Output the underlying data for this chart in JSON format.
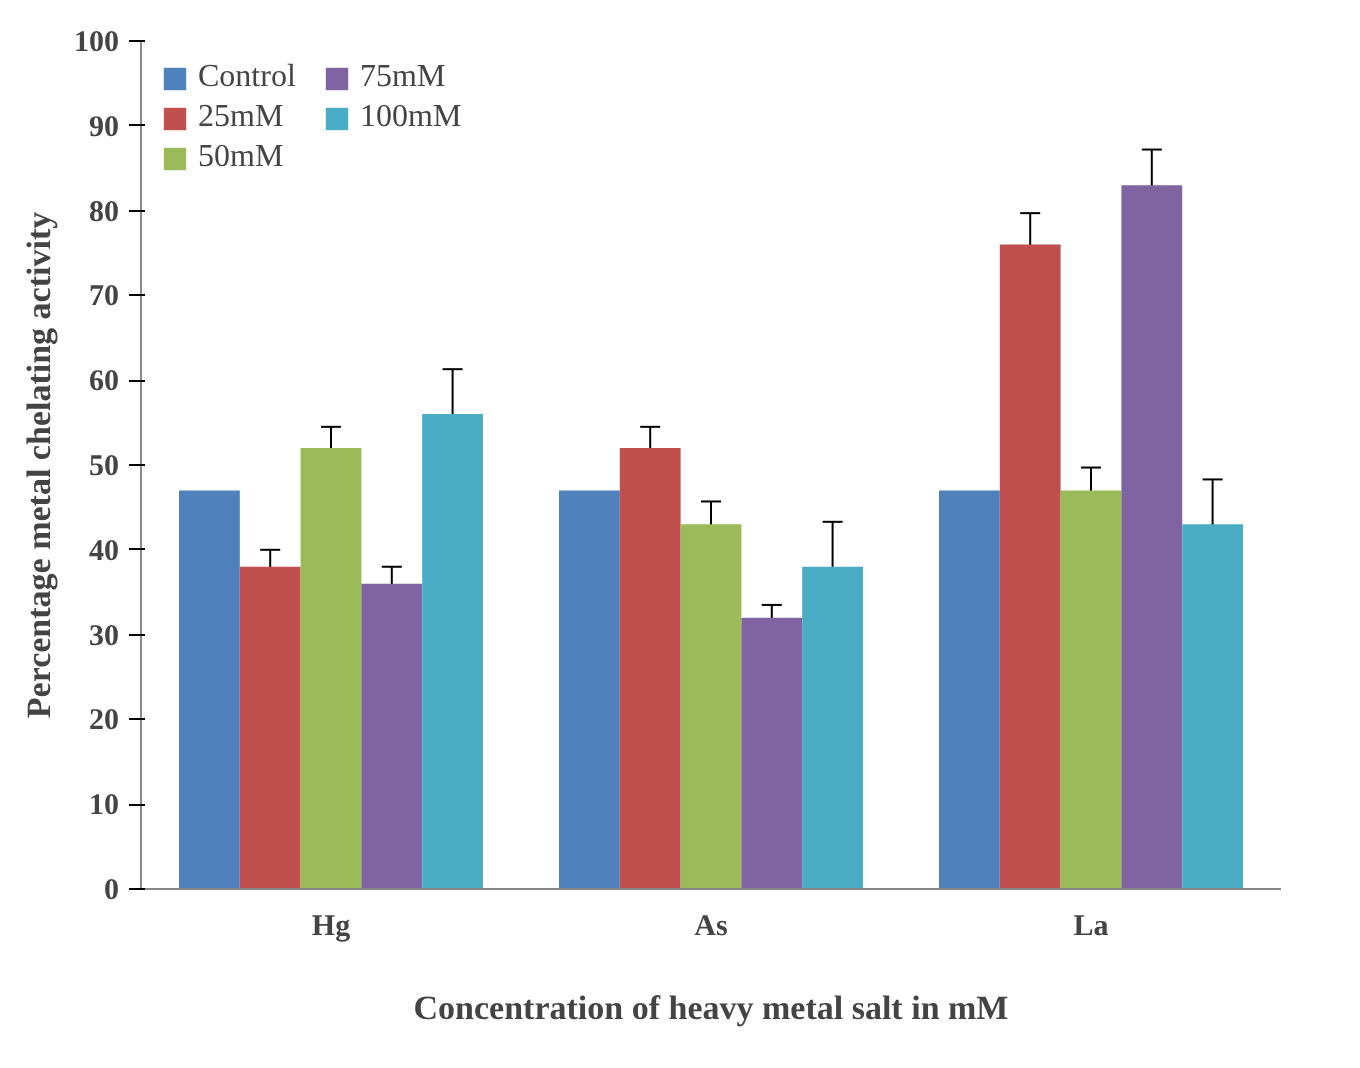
{
  "chart_data": {
    "type": "bar",
    "xlabel": "Concentration of heavy metal salt in mM",
    "ylabel": "Percentage metal chelating activity",
    "categories": [
      "Hg",
      "As",
      "La"
    ],
    "series": [
      {
        "name": "Control",
        "color": "#4f81bd",
        "values": [
          47,
          47,
          47
        ]
      },
      {
        "name": "25mM",
        "color": "#c0504d",
        "values": [
          38,
          52,
          76
        ],
        "errors": [
          2,
          2.5,
          3.7
        ]
      },
      {
        "name": "50mM",
        "color": "#9bbb59",
        "values": [
          52,
          43,
          47
        ],
        "errors": [
          2.5,
          2.7,
          2.7
        ]
      },
      {
        "name": "75mM",
        "color": "#8064a2",
        "values": [
          36,
          32,
          83
        ],
        "errors": [
          2,
          1.5,
          4.2
        ]
      },
      {
        "name": "100mM",
        "color": "#4bacc6",
        "values": [
          56,
          38,
          43
        ],
        "errors": [
          5.3,
          5.3,
          5.3
        ]
      }
    ],
    "ylim": [
      0,
      100
    ],
    "yticks": [
      0,
      10,
      20,
      30,
      40,
      50,
      60,
      70,
      80,
      90,
      100
    ],
    "grid": false,
    "legend": "top left"
  }
}
